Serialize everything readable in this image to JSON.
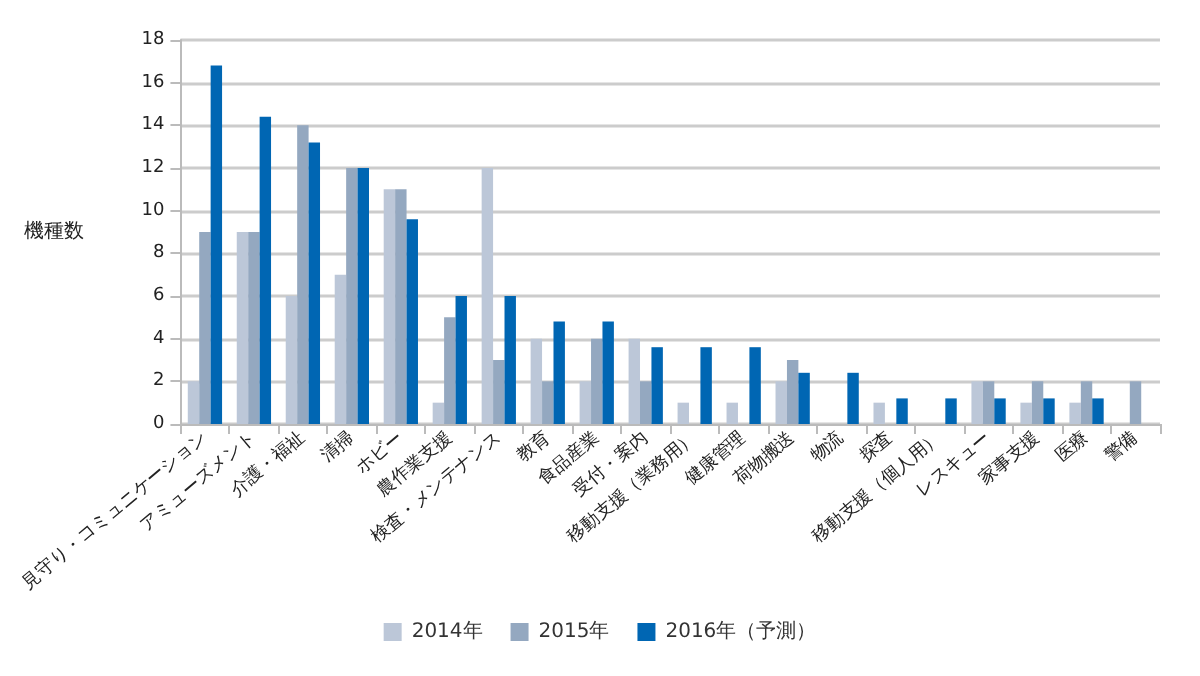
{
  "chart_data": {
    "type": "bar",
    "ylabel": "機種数",
    "categories": [
      "見守り・コミュニケーション",
      "アミューズメント",
      "介護・福祉",
      "清掃",
      "ホビー",
      "農作業支援",
      "検査・メンテナンス",
      "教育",
      "食品産業",
      "受付・案内",
      "移動支援（業務用）",
      "健康管理",
      "荷物搬送",
      "物流",
      "探査",
      "移動支援（個人用）",
      "レスキュー",
      "家事支援",
      "医療",
      "警備"
    ],
    "series": [
      {
        "name": "2014年",
        "color": "#bcc7d8",
        "values": [
          2,
          9,
          6,
          7,
          11,
          1,
          12,
          4,
          2,
          4,
          1,
          1,
          2,
          0,
          1,
          0,
          2,
          1,
          1,
          0
        ]
      },
      {
        "name": "2015年",
        "color": "#94a8c0",
        "values": [
          9,
          9,
          14,
          12,
          11,
          5,
          3,
          2,
          4,
          2,
          0,
          0,
          3,
          0,
          0,
          0,
          2,
          2,
          2,
          2
        ]
      },
      {
        "name": "2016年（予測）",
        "color": "#0066b3",
        "values": [
          16.8,
          14.4,
          13.2,
          12,
          9.6,
          6,
          6,
          4.8,
          4.8,
          3.6,
          3.6,
          3.6,
          2.4,
          2.4,
          1.2,
          1.2,
          1.2,
          1.2,
          1.2,
          null
        ]
      }
    ],
    "ylim": [
      0,
      18
    ],
    "yticks": [
      0,
      2,
      4,
      6,
      8,
      10,
      12,
      14,
      16,
      18
    ],
    "grid": "y",
    "legend": "bottom"
  }
}
